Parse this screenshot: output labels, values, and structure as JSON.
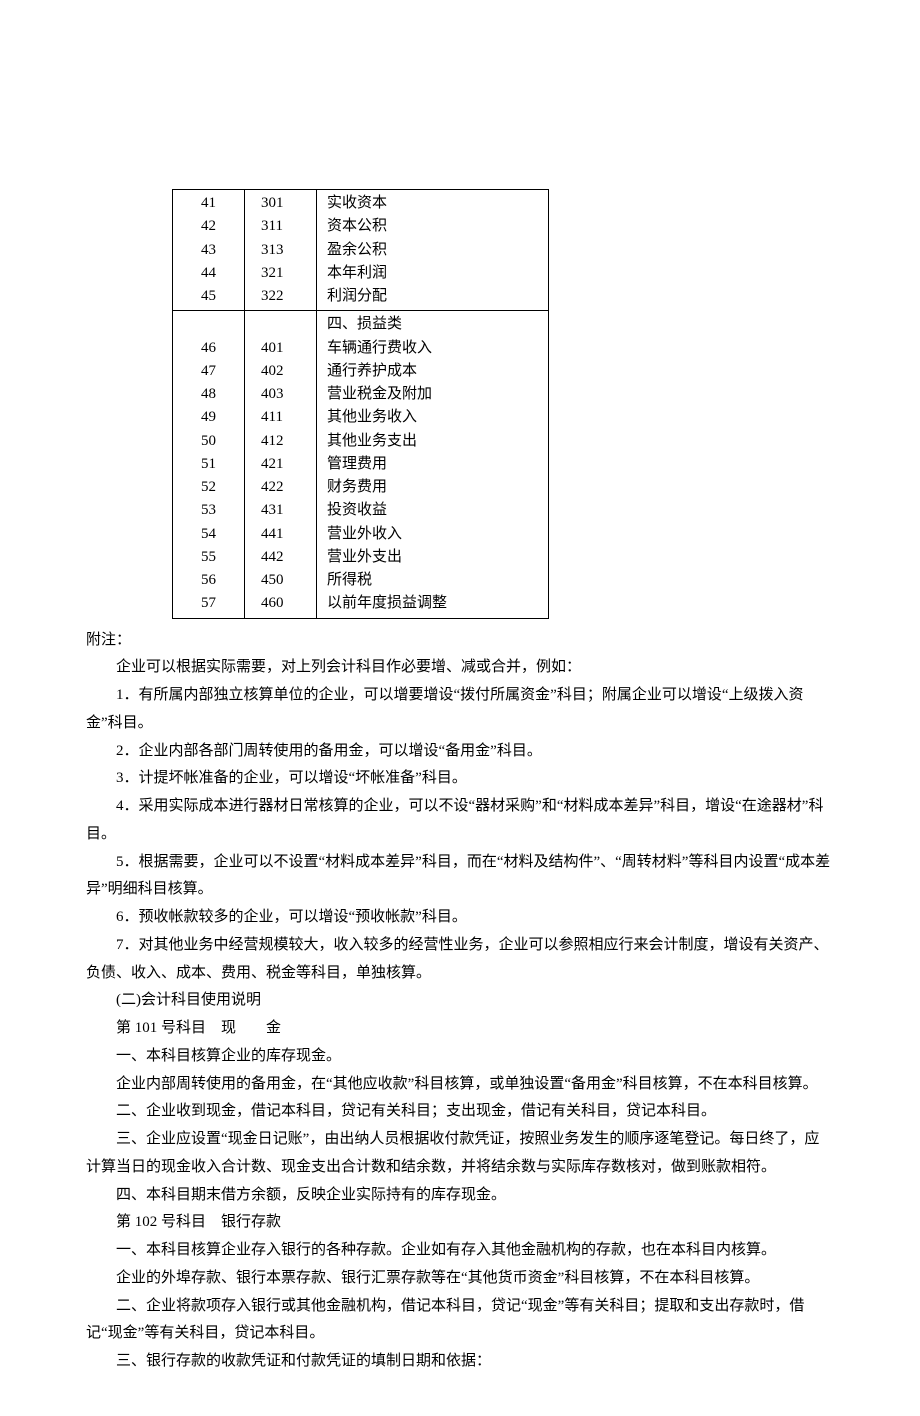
{
  "table": {
    "block1": [
      {
        "seq": "41",
        "code": "301",
        "name": "实收资本"
      },
      {
        "seq": "42",
        "code": "311",
        "name": "资本公积"
      },
      {
        "seq": "43",
        "code": "313",
        "name": "盈余公积"
      },
      {
        "seq": "44",
        "code": "321",
        "name": "本年利润"
      },
      {
        "seq": "45",
        "code": "322",
        "name": "利润分配"
      }
    ],
    "block2_header": "四、损益类",
    "block2": [
      {
        "seq": "46",
        "code": "401",
        "name": "车辆通行费收入"
      },
      {
        "seq": "47",
        "code": "402",
        "name": "通行养护成本"
      },
      {
        "seq": "48",
        "code": "403",
        "name": "营业税金及附加"
      },
      {
        "seq": "49",
        "code": "411",
        "name": "其他业务收入"
      },
      {
        "seq": "50",
        "code": "412",
        "name": "其他业务支出"
      },
      {
        "seq": "51",
        "code": "421",
        "name": "管理费用"
      },
      {
        "seq": "52",
        "code": "422",
        "name": "财务费用"
      },
      {
        "seq": "53",
        "code": "431",
        "name": "投资收益"
      },
      {
        "seq": "54",
        "code": "441",
        "name": "营业外收入"
      },
      {
        "seq": "55",
        "code": "442",
        "name": "营业外支出"
      },
      {
        "seq": "56",
        "code": "450",
        "name": "所得税"
      },
      {
        "seq": "57",
        "code": "460",
        "name": "以前年度损益调整"
      }
    ]
  },
  "paragraphs": {
    "p0": "附注：",
    "p1": "企业可以根据实际需要，对上列会计科目作必要增、减或合并，例如：",
    "p2": "1．有所属内部独立核算单位的企业，可以增要增设“拨付所属资金”科目；附属企业可以增设“上级拨入资金”科目。",
    "p3": "2．企业内部各部门周转使用的备用金，可以增设“备用金”科目。",
    "p4": "3．计提坏帐准备的企业，可以增设“坏帐准备”科目。",
    "p5": "4．采用实际成本进行器材日常核算的企业，可以不设“器材采购”和“材料成本差异”科目，增设“在途器材”科目。",
    "p6": "5．根据需要，企业可以不设置“材料成本差异”科目，而在“材料及结构件”、“周转材料”等科目内设置“成本差异”明细科目核算。",
    "p7": "6．预收帐款较多的企业，可以增设“预收帐款”科目。",
    "p8": "7．对其他业务中经营规模较大，收入较多的经营性业务，企业可以参照相应行来会计制度，增设有关资产、负债、收入、成本、费用、税金等科目，单独核算。",
    "p9": "(二)会计科目使用说明",
    "p10": "第 101 号科目　现　　金",
    "p11": "一、本科目核算企业的库存现金。",
    "p12": "企业内部周转使用的备用金，在“其他应收款”科目核算，或单独设置“备用金”科目核算，不在本科目核算。",
    "p13": "二、企业收到现金，借记本科目，贷记有关科目；支出现金，借记有关科目，贷记本科目。",
    "p14": "三、企业应设置“现金日记账”，由出纳人员根据收付款凭证，按照业务发生的顺序逐笔登记。每日终了，应计算当日的现金收入合计数、现金支出合计数和结余数，并将结余数与实际库存数核对，做到账款相符。",
    "p15": "四、本科目期末借方余额，反映企业实际持有的库存现金。",
    "p16": "第 102 号科目　银行存款",
    "p17": "一、本科目核算企业存入银行的各种存款。企业如有存入其他金融机构的存款，也在本科目内核算。",
    "p18": "企业的外埠存款、银行本票存款、银行汇票存款等在“其他货币资金”科目核算，不在本科目核算。",
    "p19": "二、企业将款项存入银行或其他金融机构，借记本科目，贷记“现金”等有关科目；提取和支出存款时，借记“现金”等有关科目，贷记本科目。",
    "p20": "三、银行存款的收款凭证和付款凭证的填制日期和依据："
  }
}
